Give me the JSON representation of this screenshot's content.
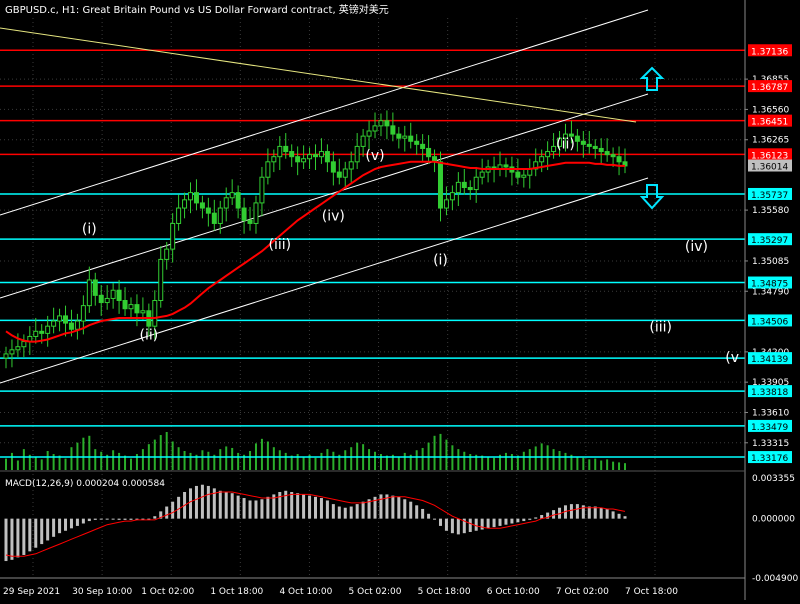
{
  "window": {
    "title": "GBPUSD.c, H1:  Great Britain Pound vs US Dollar Forward contract, 英镑对美元"
  },
  "colors": {
    "background": "#000000",
    "grid": "#3a3a3a",
    "candle": "#32cd32",
    "level_red": "#ff0000",
    "level_cyan": "#00ffff",
    "channel": "#ffffff",
    "trendline": "#ffff80",
    "moving_average": "#ff0000",
    "macd_hist": "#c0c0c0",
    "macd_signal": "#ff0000",
    "price_tag": "#c0c0c0"
  },
  "price_axis": {
    "range": [
      1.3305,
      1.3745
    ],
    "ticks": [
      "1.36855",
      "1.36560",
      "1.36265",
      "1.35580",
      "1.35085",
      "1.34790",
      "1.34200",
      "1.33905",
      "1.33610",
      "1.33315"
    ]
  },
  "levels": {
    "red": [
      {
        "price": 1.37136,
        "label": "1.37136"
      },
      {
        "price": 1.36787,
        "label": "1.36787"
      },
      {
        "price": 1.36451,
        "label": "1.36451"
      },
      {
        "price": 1.36123,
        "label": "1.36123"
      }
    ],
    "cyan": [
      {
        "price": 1.35737,
        "label": "1.35737"
      },
      {
        "price": 1.35297,
        "label": "1.35297"
      },
      {
        "price": 1.34875,
        "label": "1.34875"
      },
      {
        "price": 1.34506,
        "label": "1.34506"
      },
      {
        "price": 1.34139,
        "label": "1.34139"
      },
      {
        "price": 1.33818,
        "label": "1.33818"
      },
      {
        "price": 1.33479,
        "label": "1.33479"
      },
      {
        "price": 1.33176,
        "label": "1.33176"
      }
    ]
  },
  "current_price": {
    "price": 1.36014,
    "label": "1.36014"
  },
  "wave_labels": [
    {
      "text": "(i)",
      "bar": 14,
      "price": 1.3535
    },
    {
      "text": "(ii)",
      "bar": 24,
      "price": 1.3432
    },
    {
      "text": "(iii)",
      "bar": 46,
      "price": 1.352
    },
    {
      "text": "(iv)",
      "bar": 55,
      "price": 1.3548
    },
    {
      "text": "(v)",
      "bar": 62,
      "price": 1.3607
    },
    {
      "text": "(i)",
      "bar": 73,
      "price": 1.3505
    },
    {
      "text": "(ii)",
      "bar": 94,
      "price": 1.3618
    },
    {
      "text": "(iv)",
      "bar": 116,
      "price": 1.3518
    },
    {
      "text": "(iii)",
      "bar": 110,
      "price": 1.344
    },
    {
      "text": "(v",
      "bar": 122,
      "price": 1.341
    }
  ],
  "arrows": [
    {
      "direction": "up",
      "name": "arrow-up-icon"
    },
    {
      "direction": "down",
      "name": "arrow-down-icon"
    }
  ],
  "time_axis": {
    "labels": [
      "29 Sep 2021",
      "30 Sep 10:00",
      "1 Oct 02:00",
      "1 Oct 18:00",
      "4 Oct 10:00",
      "5 Oct 02:00",
      "5 Oct 18:00",
      "6 Oct 10:00",
      "7 Oct 02:00",
      "7 Oct 18:00"
    ]
  },
  "macd": {
    "title": "MACD(12,26,9) 0.000204 0.000584",
    "ticks": [
      "0.003355",
      "0.000000",
      "-0.004900"
    ],
    "range": [
      -0.0049,
      0.003355
    ]
  },
  "chart_data": {
    "type": "candlestick",
    "symbol": "GBPUSD.c",
    "timeframe": "H1",
    "close": [
      1.3418,
      1.3422,
      1.3425,
      1.343,
      1.3435,
      1.344,
      1.3438,
      1.3445,
      1.345,
      1.3455,
      1.3448,
      1.3442,
      1.345,
      1.3465,
      1.349,
      1.3475,
      1.3468,
      1.3472,
      1.348,
      1.347,
      1.3462,
      1.3466,
      1.3458,
      1.346,
      1.3445,
      1.347,
      1.351,
      1.352,
      1.3545,
      1.356,
      1.3568,
      1.3575,
      1.3565,
      1.356,
      1.3555,
      1.3545,
      1.356,
      1.357,
      1.3575,
      1.356,
      1.3548,
      1.3545,
      1.3565,
      1.359,
      1.3605,
      1.361,
      1.362,
      1.3615,
      1.361,
      1.3605,
      1.3608,
      1.3612,
      1.361,
      1.3615,
      1.3605,
      1.3595,
      1.359,
      1.3598,
      1.3605,
      1.362,
      1.363,
      1.3635,
      1.364,
      1.3645,
      1.364,
      1.3632,
      1.3628,
      1.363,
      1.3625,
      1.3622,
      1.3618,
      1.361,
      1.3605,
      1.356,
      1.3568,
      1.3575,
      1.3585,
      1.358,
      1.3578,
      1.359,
      1.3595,
      1.36,
      1.3598,
      1.3602,
      1.36,
      1.3595,
      1.359,
      1.3592,
      1.3598,
      1.3605,
      1.361,
      1.3615,
      1.362,
      1.3628,
      1.3632,
      1.363,
      1.3625,
      1.3622,
      1.362,
      1.3618,
      1.3615,
      1.3612,
      1.361,
      1.3605,
      1.3601
    ],
    "ma": [
      1.344,
      1.3436,
      1.3433,
      1.3431,
      1.343,
      1.343,
      1.3431,
      1.3432,
      1.3434,
      1.3436,
      1.3438,
      1.3439,
      1.3441,
      1.3443,
      1.3446,
      1.3448,
      1.345,
      1.3451,
      1.3452,
      1.3453,
      1.3453,
      1.3453,
      1.3453,
      1.3453,
      1.3453,
      1.3453,
      1.3454,
      1.3455,
      1.3457,
      1.346,
      1.3463,
      1.3467,
      1.3472,
      1.3477,
      1.3482,
      1.3486,
      1.349,
      1.3494,
      1.3498,
      1.3502,
      1.3506,
      1.351,
      1.3514,
      1.3518,
      1.3523,
      1.3528,
      1.3533,
      1.3538,
      1.3543,
      1.3548,
      1.3552,
      1.3556,
      1.356,
      1.3564,
      1.3568,
      1.3572,
      1.3576,
      1.358,
      1.3584,
      1.3588,
      1.3592,
      1.3595,
      1.3598,
      1.36,
      1.3601,
      1.3602,
      1.3603,
      1.3604,
      1.3605,
      1.3605,
      1.3605,
      1.3605,
      1.3605,
      1.3604,
      1.3603,
      1.3602,
      1.3601,
      1.36,
      1.3599,
      1.3599,
      1.3598,
      1.3598,
      1.3598,
      1.3598,
      1.3598,
      1.3598,
      1.3598,
      1.3598,
      1.3598,
      1.3599,
      1.36,
      1.3601,
      1.3602,
      1.3603,
      1.3604,
      1.3604,
      1.3604,
      1.3604,
      1.3604,
      1.3603,
      1.3603,
      1.3602,
      1.3602,
      1.3601,
      1.3601
    ],
    "volume": [
      0.3,
      0.45,
      0.25,
      0.55,
      0.4,
      0.35,
      0.28,
      0.5,
      0.42,
      0.38,
      0.3,
      0.6,
      0.72,
      0.85,
      0.9,
      0.55,
      0.48,
      0.4,
      0.52,
      0.45,
      0.38,
      0.3,
      0.42,
      0.55,
      0.68,
      0.8,
      0.92,
      1.0,
      0.75,
      0.6,
      0.5,
      0.45,
      0.4,
      0.52,
      0.48,
      0.4,
      0.55,
      0.62,
      0.58,
      0.45,
      0.4,
      0.5,
      0.7,
      0.82,
      0.75,
      0.6,
      0.52,
      0.45,
      0.38,
      0.42,
      0.35,
      0.4,
      0.32,
      0.45,
      0.55,
      0.48,
      0.4,
      0.52,
      0.6,
      0.72,
      0.68,
      0.55,
      0.48,
      0.42,
      0.38,
      0.4,
      0.35,
      0.45,
      0.4,
      0.52,
      0.58,
      0.72,
      0.9,
      0.95,
      0.8,
      0.65,
      0.55,
      0.48,
      0.42,
      0.4,
      0.38,
      0.35,
      0.32,
      0.4,
      0.45,
      0.42,
      0.38,
      0.48,
      0.55,
      0.62,
      0.7,
      0.65,
      0.55,
      0.5,
      0.45,
      0.4,
      0.35,
      0.32,
      0.28,
      0.3,
      0.25,
      0.28,
      0.22,
      0.2,
      0.18
    ],
    "macd": [
      -0.0035,
      -0.0034,
      -0.0032,
      -0.003,
      -0.0027,
      -0.0024,
      -0.0021,
      -0.0018,
      -0.0015,
      -0.0012,
      -0.001,
      -0.0008,
      -0.0006,
      -0.0004,
      -0.0002,
      -0.0001,
      0.0,
      0.0,
      0.0,
      -0.0001,
      -0.0001,
      -0.0001,
      -0.0001,
      -0.0001,
      -0.0001,
      0.0002,
      0.0006,
      0.001,
      0.0014,
      0.0018,
      0.0022,
      0.0025,
      0.0027,
      0.0028,
      0.0027,
      0.0025,
      0.0023,
      0.0022,
      0.0021,
      0.0019,
      0.0017,
      0.0015,
      0.0015,
      0.0016,
      0.0018,
      0.002,
      0.0022,
      0.0023,
      0.0022,
      0.0021,
      0.002,
      0.0019,
      0.0018,
      0.0017,
      0.0015,
      0.0012,
      0.001,
      0.0009,
      0.001,
      0.0012,
      0.0014,
      0.0016,
      0.0018,
      0.002,
      0.002,
      0.0019,
      0.0018,
      0.0016,
      0.0014,
      0.0011,
      0.0008,
      0.0004,
      0.0,
      -0.0006,
      -0.001,
      -0.0012,
      -0.0013,
      -0.0012,
      -0.0011,
      -0.001,
      -0.0009,
      -0.0008,
      -0.0007,
      -0.0006,
      -0.0005,
      -0.0004,
      -0.0003,
      -0.0002,
      -0.0001,
      0.0001,
      0.0003,
      0.0005,
      0.0007,
      0.0009,
      0.0011,
      0.0012,
      0.0012,
      0.0011,
      0.001,
      0.001,
      0.0009,
      0.0008,
      0.0006,
      0.0004,
      0.0002
    ],
    "signal": [
      -0.003,
      -0.0031,
      -0.0031,
      -0.0031,
      -0.003,
      -0.0029,
      -0.0027,
      -0.0025,
      -0.0023,
      -0.0021,
      -0.0019,
      -0.0017,
      -0.0015,
      -0.0013,
      -0.0011,
      -0.0009,
      -0.0007,
      -0.0005,
      -0.0004,
      -0.0003,
      -0.0002,
      -0.0002,
      -0.0001,
      -0.0001,
      -0.0001,
      -0.0001,
      0.0001,
      0.0003,
      0.0005,
      0.0008,
      0.0011,
      0.0014,
      0.0016,
      0.0018,
      0.002,
      0.0021,
      0.0022,
      0.0022,
      0.0022,
      0.0021,
      0.002,
      0.0019,
      0.0018,
      0.0017,
      0.0017,
      0.0017,
      0.0018,
      0.0019,
      0.002,
      0.002,
      0.002,
      0.002,
      0.0019,
      0.0018,
      0.0017,
      0.0016,
      0.0015,
      0.0014,
      0.0013,
      0.0013,
      0.0013,
      0.0014,
      0.0015,
      0.0016,
      0.0017,
      0.0018,
      0.0018,
      0.0018,
      0.0017,
      0.0016,
      0.0015,
      0.0013,
      0.0011,
      0.0008,
      0.0005,
      0.0002,
      0.0,
      -0.0002,
      -0.0004,
      -0.0006,
      -0.0007,
      -0.0008,
      -0.0008,
      -0.0008,
      -0.0007,
      -0.0006,
      -0.0005,
      -0.0004,
      -0.0003,
      -0.0002,
      0.0,
      0.0001,
      0.0003,
      0.0004,
      0.0006,
      0.0007,
      0.0008,
      0.0009,
      0.0009,
      0.0009,
      0.0009,
      0.0008,
      0.0008,
      0.0007,
      0.0006
    ]
  }
}
